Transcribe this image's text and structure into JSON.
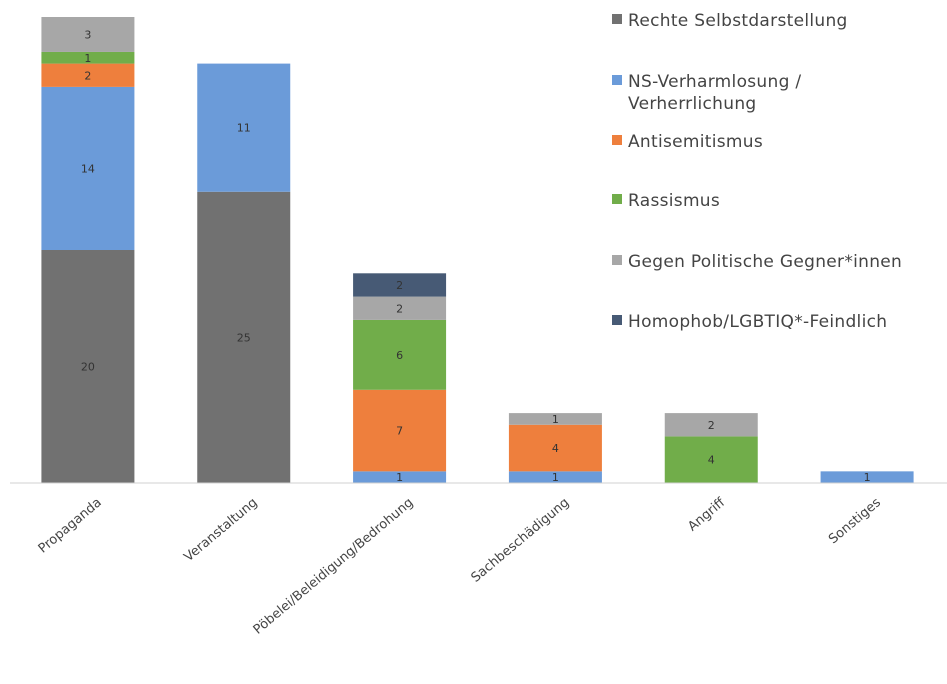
{
  "chart_data": {
    "type": "stacked_bar",
    "categories": [
      "Propaganda",
      "Veranstaltung",
      "Pöbelei/Beleidigung/Bedrohung",
      "Sachbeschädigung",
      "Angriff",
      "Sonstiges"
    ],
    "series": [
      {
        "name": "Rechte Selbstdarstellung",
        "color": "#717171",
        "values": [
          20,
          25,
          null,
          null,
          null,
          null
        ]
      },
      {
        "name": "NS-Verharmlosung / Verherrlichung",
        "color": "#6b9bd9",
        "values": [
          14,
          11,
          1,
          1,
          null,
          1
        ]
      },
      {
        "name": "Antisemitismus",
        "color": "#ee7f3d",
        "values": [
          2,
          null,
          7,
          4,
          null,
          null
        ]
      },
      {
        "name": "Rassismus",
        "color": "#71ad4a",
        "values": [
          1,
          null,
          6,
          null,
          4,
          null
        ]
      },
      {
        "name": "Gegen Politische Gegner*innen",
        "color": "#a7a7a7",
        "values": [
          3,
          null,
          2,
          1,
          2,
          null
        ]
      },
      {
        "name": "Homophob/LGBTIQ*-Feindlich",
        "color": "#475a75",
        "values": [
          null,
          null,
          2,
          null,
          null,
          null
        ]
      }
    ],
    "legend": "right"
  }
}
